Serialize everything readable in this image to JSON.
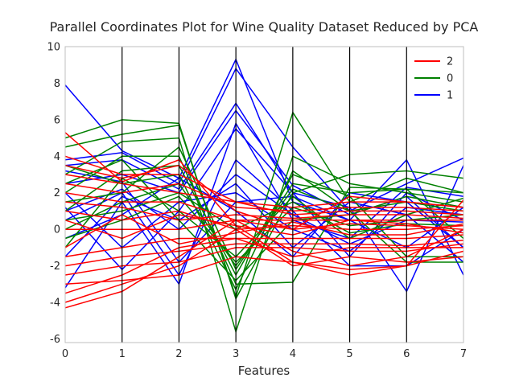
{
  "chart_data": {
    "type": "line",
    "title": "Parallel Coordinates Plot for Wine Quality Dataset Reduced by PCA",
    "xlabel": "Features",
    "ylabel": "",
    "x": [
      0,
      1,
      2,
      3,
      4,
      5,
      6,
      7
    ],
    "xlim": [
      0,
      7
    ],
    "ylim": [
      -6.2,
      10
    ],
    "yticks": [
      -6,
      -4,
      -2,
      0,
      2,
      4,
      6,
      8,
      10
    ],
    "grid": false,
    "legend_position": "top-right",
    "legend": [
      "2",
      "0",
      "1"
    ],
    "colors": {
      "2": "#ff0000",
      "0": "#008000",
      "1": "#0000ff"
    },
    "series": [
      {
        "name": "1",
        "lines": [
          [
            7.9,
            4.3,
            2.8,
            9.3,
            1.5,
            0.5,
            3.8,
            -2.5
          ],
          [
            3.8,
            4.2,
            2.5,
            8.8,
            4.5,
            1.0,
            2.5,
            3.9
          ],
          [
            3.5,
            3.8,
            2.2,
            6.9,
            2.0,
            1.2,
            -3.4,
            3.5
          ],
          [
            2.5,
            3.0,
            2.0,
            6.5,
            2.4,
            0.8,
            1.8,
            -1.0
          ],
          [
            -3.2,
            1.5,
            -3.0,
            5.8,
            0.5,
            -0.5,
            2.3,
            1.8
          ],
          [
            1.2,
            -2.2,
            1.0,
            5.5,
            2.0,
            -1.5,
            2.0,
            0.5
          ],
          [
            0.5,
            2.0,
            -2.5,
            3.8,
            1.0,
            -2.0,
            -2.0,
            0.0
          ],
          [
            -1.5,
            1.8,
            0.5,
            2.5,
            -1.0,
            1.5,
            0.8,
            -1.8
          ],
          [
            2.0,
            -1.0,
            1.5,
            2.0,
            0.0,
            -1.2,
            1.2,
            0.8
          ],
          [
            3.2,
            2.6,
            -1.8,
            1.5,
            1.8,
            0.5,
            -1.0,
            1.2
          ],
          [
            -0.5,
            0.8,
            2.8,
            1.0,
            -1.5,
            2.0,
            1.5,
            -1.0
          ],
          [
            1.0,
            2.2,
            0.0,
            3.0,
            0.8,
            -0.8,
            0.5,
            0.4
          ]
        ]
      },
      {
        "name": "0",
        "lines": [
          [
            5.0,
            6.0,
            5.8,
            -3.8,
            2.0,
            3.0,
            3.2,
            2.8
          ],
          [
            4.5,
            5.2,
            5.7,
            -3.7,
            6.4,
            1.5,
            2.8,
            2.0
          ],
          [
            3.0,
            4.8,
            5.0,
            -5.6,
            4.0,
            2.5,
            2.0,
            1.5
          ],
          [
            3.5,
            2.5,
            3.0,
            -3.3,
            3.2,
            1.0,
            -1.8,
            -1.8
          ],
          [
            2.0,
            4.0,
            4.0,
            -3.0,
            -2.9,
            2.3,
            2.2,
            2.0
          ],
          [
            1.0,
            3.2,
            3.5,
            -2.5,
            3.0,
            1.8,
            -1.5,
            -1.5
          ],
          [
            0.0,
            1.5,
            2.5,
            -2.0,
            2.2,
            1.0,
            1.5,
            1.0
          ],
          [
            -1.0,
            2.8,
            1.0,
            -1.5,
            1.8,
            -0.5,
            0.8,
            1.7
          ],
          [
            2.5,
            3.8,
            0.5,
            -2.8,
            0.5,
            0.8,
            1.8,
            1.2
          ],
          [
            -0.5,
            0.5,
            1.8,
            -1.8,
            1.2,
            0.2,
            0.5,
            0.8
          ],
          [
            1.5,
            2.0,
            4.5,
            -2.2,
            2.5,
            2.0,
            2.2,
            -0.5
          ],
          [
            0.5,
            1.0,
            2.0,
            0.0,
            1.5,
            -0.2,
            0.3,
            0.2
          ]
        ]
      },
      {
        "name": "2",
        "lines": [
          [
            5.3,
            2.6,
            3.8,
            0.2,
            -1.8,
            -2.5,
            -2.0,
            1.6
          ],
          [
            -4.3,
            -3.4,
            -1.5,
            0.5,
            -1.2,
            -2.0,
            -1.5,
            0.0
          ],
          [
            -4.0,
            -3.0,
            -2.0,
            0.0,
            -2.0,
            -1.5,
            -1.8,
            -1.5
          ],
          [
            3.5,
            2.8,
            3.5,
            1.0,
            0.0,
            1.8,
            1.5,
            1.2
          ],
          [
            -3.5,
            -2.5,
            -1.0,
            -0.5,
            -1.5,
            -1.0,
            -1.0,
            -1.0
          ],
          [
            3.0,
            2.5,
            2.0,
            1.5,
            0.8,
            1.0,
            1.0,
            0.8
          ],
          [
            2.0,
            1.5,
            1.5,
            0.5,
            0.5,
            0.5,
            0.5,
            0.5
          ],
          [
            -2.5,
            -2.0,
            -1.8,
            -1.0,
            -1.0,
            -1.2,
            -1.2,
            -0.8
          ],
          [
            1.0,
            0.5,
            1.0,
            0.0,
            0.2,
            0.0,
            0.0,
            0.2
          ],
          [
            -1.5,
            -1.0,
            -0.5,
            -0.5,
            -0.5,
            -0.5,
            -0.5,
            -0.3
          ],
          [
            0.0,
            0.0,
            0.0,
            0.5,
            0.0,
            0.3,
            0.2,
            0.0
          ],
          [
            2.5,
            2.0,
            2.5,
            1.2,
            1.0,
            1.2,
            1.2,
            1.0
          ],
          [
            -3.0,
            -2.8,
            -2.5,
            -1.5,
            -1.8,
            -2.2,
            -2.0,
            -1.2
          ],
          [
            1.5,
            1.2,
            0.5,
            0.8,
            0.6,
            0.8,
            0.8,
            0.6
          ],
          [
            -2.0,
            -1.5,
            -1.2,
            -0.8,
            -0.8,
            -0.8,
            -0.9,
            -0.6
          ],
          [
            4.0,
            3.0,
            3.0,
            1.5,
            1.2,
            1.5,
            1.5,
            1.2
          ],
          [
            0.5,
            -0.5,
            0.8,
            0.2,
            -0.3,
            0.5,
            0.3,
            -0.2
          ],
          [
            -1.0,
            0.8,
            -0.8,
            -0.2,
            0.4,
            -0.3,
            -0.3,
            0.3
          ]
        ]
      }
    ]
  }
}
